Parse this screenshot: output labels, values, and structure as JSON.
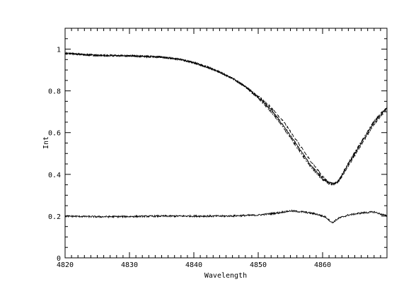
{
  "chart_data": {
    "type": "line",
    "title": "",
    "xlabel": "Wavelength",
    "ylabel": "Int",
    "xlim": [
      4820,
      4870
    ],
    "ylim": [
      0,
      1.1
    ],
    "x_ticks": [
      4820,
      4830,
      4840,
      4850,
      4860
    ],
    "y_ticks": [
      0,
      0.2,
      0.4,
      0.6,
      0.8,
      1
    ],
    "y_tick_labels": [
      "0",
      "0.2",
      "0.4",
      "0.6",
      "0.8",
      "1"
    ],
    "grid": false,
    "legend": "none",
    "line_color": "#000000",
    "series": [
      {
        "style": "solid",
        "x": [
          4820,
          4825,
          4830,
          4835,
          4838,
          4840,
          4842,
          4844,
          4846,
          4848,
          4850,
          4852,
          4854,
          4856,
          4858,
          4860,
          4861,
          4861.8,
          4862.5,
          4864,
          4866,
          4868,
          4870
        ],
        "y": [
          0.98,
          0.97,
          0.968,
          0.962,
          0.95,
          0.935,
          0.915,
          0.89,
          0.86,
          0.82,
          0.77,
          0.71,
          0.63,
          0.54,
          0.45,
          0.38,
          0.36,
          0.355,
          0.37,
          0.45,
          0.55,
          0.65,
          0.72
        ]
      },
      {
        "style": "dashed",
        "x": [
          4820,
          4825,
          4830,
          4835,
          4838,
          4840,
          4842,
          4844,
          4846,
          4848,
          4850,
          4852,
          4854,
          4856,
          4858,
          4860,
          4861,
          4861.6,
          4862.5,
          4864,
          4866,
          4868,
          4870
        ],
        "y": [
          0.98,
          0.97,
          0.968,
          0.962,
          0.95,
          0.935,
          0.915,
          0.89,
          0.86,
          0.82,
          0.775,
          0.72,
          0.65,
          0.56,
          0.47,
          0.39,
          0.36,
          0.35,
          0.365,
          0.44,
          0.54,
          0.64,
          0.715
        ]
      },
      {
        "style": "dashdot",
        "x": [
          4820,
          4825,
          4830,
          4835,
          4838,
          4840,
          4842,
          4844,
          4846,
          4848,
          4850,
          4852,
          4854,
          4856,
          4858,
          4860,
          4861,
          4861.6,
          4862.5,
          4864,
          4866,
          4868,
          4870
        ],
        "y": [
          0.98,
          0.97,
          0.968,
          0.962,
          0.95,
          0.935,
          0.915,
          0.89,
          0.86,
          0.82,
          0.765,
          0.7,
          0.62,
          0.53,
          0.44,
          0.375,
          0.355,
          0.352,
          0.37,
          0.455,
          0.555,
          0.655,
          0.725
        ]
      },
      {
        "style": "solid",
        "x": [
          4820,
          4825,
          4830,
          4835,
          4840,
          4845,
          4850,
          4853,
          4855,
          4857,
          4859,
          4860.5,
          4861.5,
          4862.5,
          4864,
          4866,
          4868,
          4870
        ],
        "y": [
          0.2,
          0.197,
          0.198,
          0.2,
          0.2,
          0.2,
          0.205,
          0.215,
          0.225,
          0.22,
          0.21,
          0.195,
          0.168,
          0.19,
          0.205,
          0.215,
          0.22,
          0.2
        ]
      }
    ]
  }
}
